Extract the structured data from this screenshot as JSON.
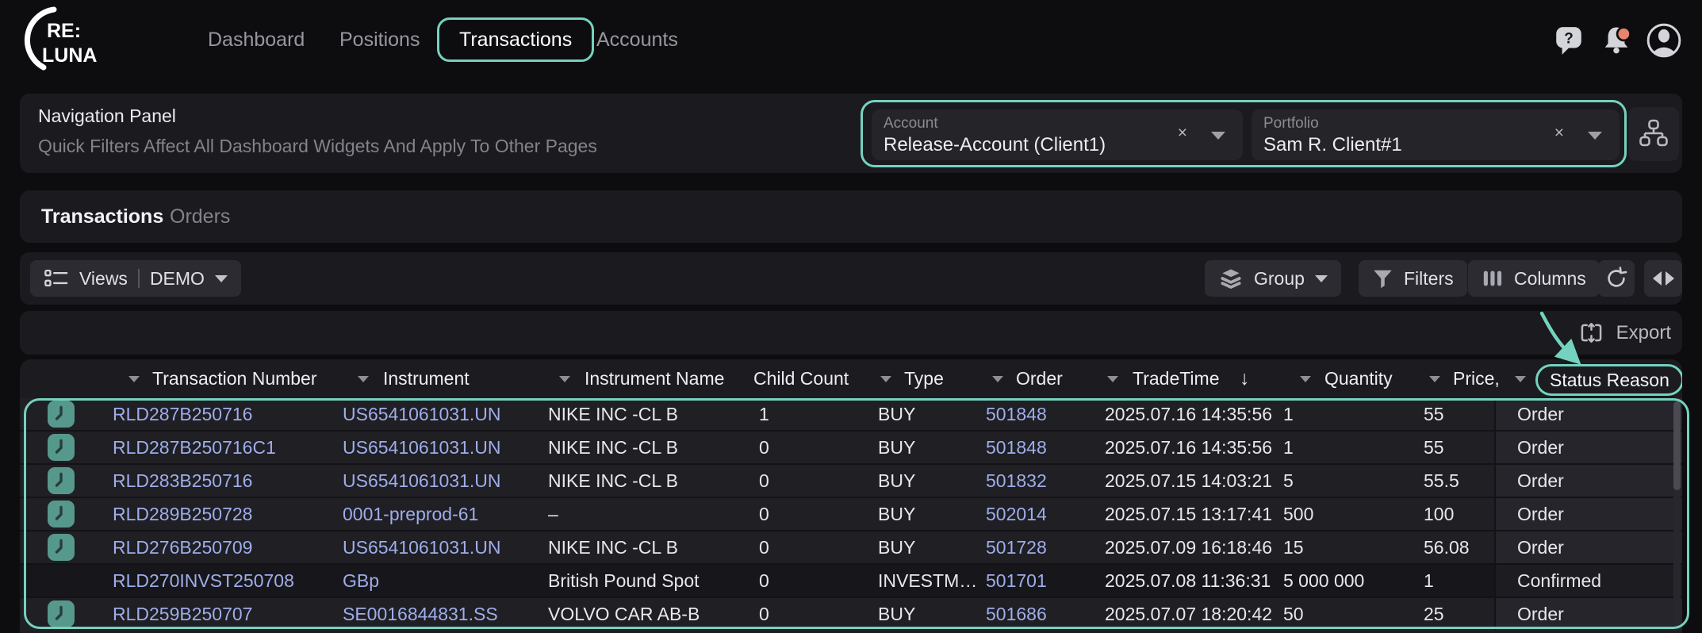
{
  "nav": {
    "logo": {
      "line1": "RE:",
      "line2": "LUNA"
    },
    "items": [
      {
        "label": "Dashboard",
        "active": false
      },
      {
        "label": "Positions",
        "active": false
      },
      {
        "label": "Transactions",
        "active": true
      },
      {
        "label": "Accounts",
        "active": false
      }
    ],
    "notification_dot": true
  },
  "icons": {
    "help": "help-bubble-icon",
    "notifications": "bell-icon",
    "profile": "avatar-icon",
    "hierarchy": "org-chart-icon",
    "views": "list-icon",
    "group": "layers-icon",
    "filters": "funnel-icon",
    "columns": "columns-icon",
    "refresh": "refresh-icon",
    "pager": "prev-next-icon",
    "export": "export-icon",
    "row_clock": "clock-icon",
    "sort": "arrow-down-icon"
  },
  "nav_panel": {
    "title": "Navigation Panel",
    "subtitle": "Quick Filters Affect All Dashboard Widgets And Apply To Other Pages",
    "account": {
      "label": "Account",
      "value": "Release-Account (Client1)",
      "clear": "×"
    },
    "portfolio": {
      "label": "Portfolio",
      "value": "Sam R. Client#1",
      "clear": "×"
    }
  },
  "tabs": [
    {
      "label": "Transactions",
      "active": true
    },
    {
      "label": "Orders",
      "active": false
    }
  ],
  "toolbar": {
    "views": {
      "label": "Views",
      "value": "DEMO"
    },
    "group": "Group",
    "filters": "Filters",
    "columns": "Columns"
  },
  "export_label": "Export",
  "table": {
    "columns": [
      {
        "key": "txn",
        "label": "Transaction Number",
        "menu": true
      },
      {
        "key": "instrument",
        "label": "Instrument",
        "menu": true
      },
      {
        "key": "name",
        "label": "Instrument Name",
        "menu": true
      },
      {
        "key": "child",
        "label": "Child Count",
        "menu": false
      },
      {
        "key": "type",
        "label": "Type",
        "menu": true
      },
      {
        "key": "order",
        "label": "Order",
        "menu": true
      },
      {
        "key": "time",
        "label": "TradeTime",
        "menu": true,
        "sort": "desc"
      },
      {
        "key": "qty",
        "label": "Quantity",
        "menu": true
      },
      {
        "key": "price",
        "label": "Price,",
        "menu": true
      },
      {
        "key": "status",
        "label": "Status Reason",
        "menu": true,
        "highlighted": true
      }
    ],
    "rows": [
      {
        "clock": true,
        "txn": "RLD287B250716",
        "instrument": "US6541061031.UN",
        "name": "NIKE INC -CL B",
        "child": "1",
        "type": "BUY",
        "order": "501848",
        "time": "2025.07.16 14:35:56",
        "qty": "1",
        "price": "55",
        "status": "Order"
      },
      {
        "clock": true,
        "txn": "RLD287B250716C1",
        "instrument": "US6541061031.UN",
        "name": "NIKE INC -CL B",
        "child": "0",
        "type": "BUY",
        "order": "501848",
        "time": "2025.07.16 14:35:56",
        "qty": "1",
        "price": "55",
        "status": "Order"
      },
      {
        "clock": true,
        "txn": "RLD283B250716",
        "instrument": "US6541061031.UN",
        "name": "NIKE INC -CL B",
        "child": "0",
        "type": "BUY",
        "order": "501832",
        "time": "2025.07.15 14:03:21",
        "qty": "5",
        "price": "55.5",
        "status": "Order"
      },
      {
        "clock": true,
        "txn": "RLD289B250728",
        "instrument": "0001-preprod-61",
        "name": "–",
        "child": "0",
        "type": "BUY",
        "order": "502014",
        "time": "2025.07.15 13:17:41",
        "qty": "500",
        "price": "100",
        "status": "Order"
      },
      {
        "clock": true,
        "txn": "RLD276B250709",
        "instrument": "US6541061031.UN",
        "name": "NIKE INC -CL B",
        "child": "0",
        "type": "BUY",
        "order": "501728",
        "time": "2025.07.09 16:18:46",
        "qty": "15",
        "price": "56.08",
        "status": "Order"
      },
      {
        "clock": false,
        "dim": true,
        "txn": "RLD270INVST250708",
        "instrument": "GBp",
        "name": "British Pound Spot",
        "child": "0",
        "type": "INVESTM…",
        "order": "501701",
        "time": "2025.07.08 11:36:31",
        "qty": "5 000 000",
        "price": "1",
        "status": "Confirmed"
      },
      {
        "clock": true,
        "txn": "RLD259B250707",
        "instrument": "SE0016844831.SS",
        "name": "VOLVO CAR AB-B",
        "child": "0",
        "type": "BUY",
        "order": "501686",
        "time": "2025.07.07 18:20:42",
        "qty": "50",
        "price": "25",
        "status": "Order"
      }
    ]
  },
  "colors": {
    "accent": "#74d2bf",
    "link": "#9fadea",
    "alert_dot": "#e8836e",
    "clock_chip": "#57988c"
  }
}
